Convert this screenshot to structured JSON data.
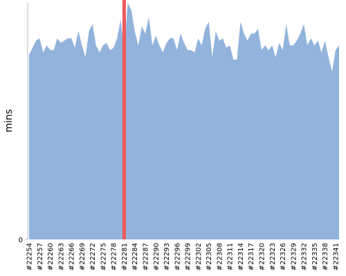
{
  "chart_data": {
    "type": "area",
    "y_label": "mins",
    "color": "#91b3dc",
    "highlight": {
      "category": 27,
      "color": "#f05a5a"
    },
    "ylim": [
      0,
      100
    ],
    "yticks": [
      0
    ],
    "categories": [
      "#22254",
      null,
      null,
      "#22257",
      null,
      null,
      "#22260",
      null,
      null,
      "#22263",
      null,
      null,
      "#22266",
      null,
      null,
      "#22269",
      null,
      null,
      "#22272",
      null,
      null,
      "#22275",
      null,
      null,
      "#22278",
      null,
      null,
      "#22281",
      null,
      null,
      "#22284",
      null,
      null,
      "#22287",
      null,
      null,
      "#22290",
      null,
      null,
      "#22293",
      null,
      null,
      "#22296",
      null,
      null,
      "#22299",
      null,
      null,
      "#22302",
      null,
      null,
      "#22305",
      null,
      null,
      "#22308",
      null,
      null,
      "#22311",
      null,
      null,
      "#22314",
      null,
      null,
      "#22317",
      null,
      null,
      "#22320",
      null,
      null,
      "#22323",
      null,
      null,
      "#22326",
      null,
      null,
      "#22329",
      null,
      null,
      "#22332",
      null,
      null,
      "#22335",
      null,
      null,
      "#22338",
      null,
      null,
      "#22341",
      null
    ],
    "values": [
      78,
      81,
      84,
      85,
      79,
      82,
      80,
      80,
      85,
      83,
      84,
      85,
      85,
      81,
      88,
      82,
      77,
      88,
      91,
      82,
      79,
      82,
      83,
      80,
      81,
      85,
      93,
      80,
      100,
      97,
      88,
      82,
      90,
      87,
      94,
      82,
      86,
      82,
      79,
      83,
      85,
      85,
      80,
      87,
      83,
      80,
      80,
      79,
      85,
      82,
      89,
      92,
      77,
      88,
      84,
      85,
      81,
      82,
      76,
      76,
      92,
      87,
      84,
      87,
      87,
      89,
      80,
      82,
      80,
      82,
      77,
      83,
      80,
      91,
      82,
      82,
      84,
      87,
      91,
      82,
      85,
      82,
      84,
      79,
      84,
      77,
      71,
      80,
      82
    ]
  }
}
